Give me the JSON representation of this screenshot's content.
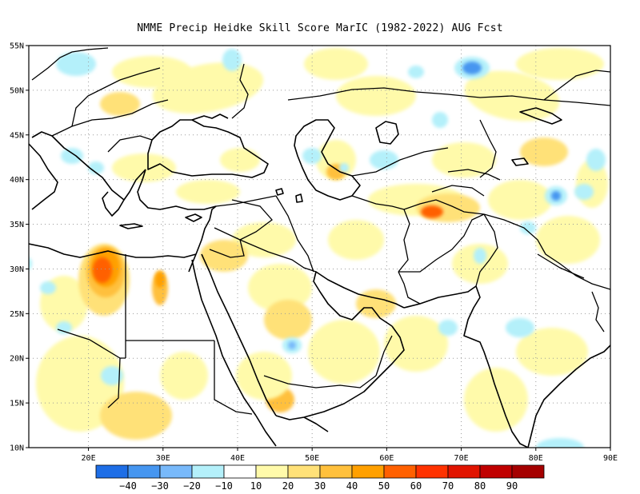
{
  "title": "NMME Precip Heidke Skill Score MarIC (1982-2022) AUG Fcst",
  "map": {
    "lon_range": [
      12,
      90
    ],
    "lat_range": [
      10,
      55
    ],
    "lat_ticks": [
      "10N",
      "15N",
      "20N",
      "25N",
      "30N",
      "35N",
      "40N",
      "45N",
      "50N",
      "55N"
    ],
    "lon_ticks": [
      "20E",
      "30E",
      "40E",
      "50E",
      "60E",
      "70E",
      "80E",
      "90E"
    ],
    "gridlines": "dotted",
    "colorbar": {
      "labels": [
        "−40",
        "−30",
        "−20",
        "−10",
        "10",
        "20",
        "30",
        "40",
        "50",
        "60",
        "70",
        "80",
        "90"
      ],
      "colors": [
        "#1e6ee6",
        "#4696f0",
        "#78b9fa",
        "#b4f0fa",
        "#ffffff",
        "#fffaaa",
        "#ffe178",
        "#ffc03c",
        "#ffa000",
        "#ff6000",
        "#ff3200",
        "#e11400",
        "#c00000",
        "#a50000"
      ]
    }
  }
}
